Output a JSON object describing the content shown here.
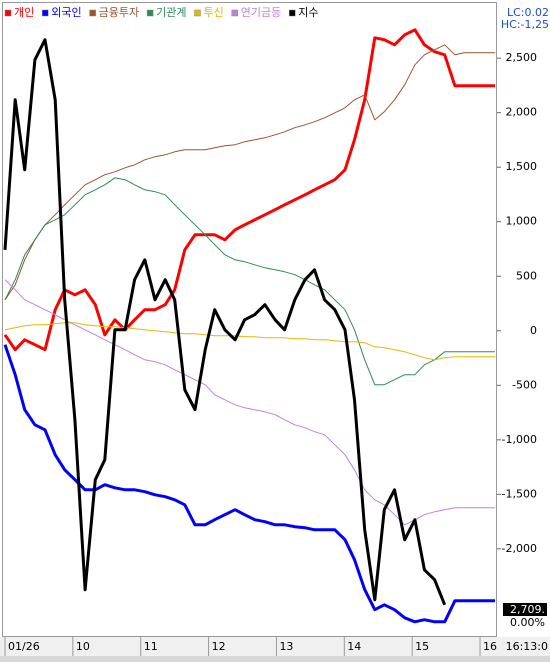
{
  "chart_data": {
    "type": "line",
    "x": [
      9.0,
      9.15,
      9.29,
      9.44,
      9.59,
      9.74,
      9.88,
      10.03,
      10.18,
      10.33,
      10.47,
      10.62,
      10.77,
      10.91,
      11.06,
      11.21,
      11.36,
      11.5,
      11.65,
      11.8,
      11.95,
      12.09,
      12.24,
      12.39,
      12.53,
      12.68,
      12.83,
      12.98,
      13.12,
      13.27,
      13.42,
      13.56,
      13.71,
      13.86,
      14.01,
      14.15,
      14.3,
      14.45,
      14.59,
      14.74,
      14.89,
      15.04,
      15.18,
      15.33,
      15.48,
      15.63,
      15.77,
      15.92,
      16.07,
      16.22
    ],
    "series": [
      {
        "name": "개인",
        "color": "#ff0000",
        "width": 3,
        "values": [
          -37,
          -174,
          -83,
          -128,
          -174,
          193,
          376,
          330,
          376,
          239,
          -37,
          101,
          9,
          101,
          193,
          193,
          239,
          376,
          743,
          880,
          880,
          880,
          834,
          926,
          972,
          1018,
          1064,
          1110,
          1155,
          1201,
          1247,
          1293,
          1339,
          1385,
          1476,
          1752,
          2118,
          2687,
          2669,
          2623,
          2714,
          2760,
          2623,
          2559,
          2531,
          2247,
          2247,
          2247,
          2247,
          2247
        ]
      },
      {
        "name": "외국인",
        "color": "#0000ff",
        "width": 3,
        "values": [
          -128,
          -403,
          -724,
          -862,
          -908,
          -1137,
          -1275,
          -1366,
          -1458,
          -1458,
          -1412,
          -1440,
          -1458,
          -1458,
          -1476,
          -1504,
          -1522,
          -1550,
          -1596,
          -1779,
          -1779,
          -1733,
          -1687,
          -1641,
          -1687,
          -1733,
          -1751,
          -1779,
          -1779,
          -1797,
          -1806,
          -1825,
          -1825,
          -1825,
          -1916,
          -2099,
          -2374,
          -2558,
          -2513,
          -2558,
          -2632,
          -2669,
          -2650,
          -2669,
          -2669,
          -2476,
          -2476,
          -2476,
          -2476,
          -2476
        ]
      },
      {
        "name": "금융투자",
        "color": "#a0522d",
        "width": 1,
        "values": [
          284,
          422,
          651,
          834,
          972,
          1064,
          1155,
          1247,
          1339,
          1385,
          1431,
          1458,
          1495,
          1522,
          1568,
          1596,
          1614,
          1641,
          1660,
          1660,
          1660,
          1678,
          1697,
          1706,
          1733,
          1752,
          1770,
          1797,
          1825,
          1862,
          1889,
          1917,
          1953,
          1999,
          2045,
          2118,
          2164,
          1935,
          2008,
          2118,
          2256,
          2439,
          2531,
          2577,
          2623,
          2531,
          2549,
          2549,
          2549,
          2549
        ]
      },
      {
        "name": "기관계",
        "color": "#2e8b57",
        "width": 1,
        "values": [
          284,
          468,
          697,
          834,
          972,
          1018,
          1064,
          1155,
          1247,
          1293,
          1339,
          1403,
          1385,
          1339,
          1293,
          1275,
          1247,
          1155,
          1064,
          972,
          880,
          789,
          697,
          651,
          633,
          605,
          578,
          559,
          541,
          514,
          468,
          422,
          376,
          284,
          193,
          9,
          -266,
          -495,
          -495,
          -449,
          -403,
          -403,
          -312,
          -266,
          -193,
          -193,
          -193,
          -193,
          -193,
          -193
        ]
      },
      {
        "name": "투신",
        "color": "#e6b800",
        "width": 1,
        "values": [
          9,
          28,
          46,
          55,
          55,
          64,
          73,
          73,
          55,
          46,
          37,
          37,
          28,
          18,
          9,
          0,
          -9,
          -18,
          -28,
          -28,
          -37,
          -46,
          -46,
          -46,
          -55,
          -55,
          -64,
          -64,
          -64,
          -73,
          -73,
          -83,
          -83,
          -92,
          -101,
          -101,
          -110,
          -147,
          -156,
          -174,
          -193,
          -220,
          -248,
          -266,
          -248,
          -238,
          -238,
          -238,
          -238,
          -238
        ]
      },
      {
        "name": "연기금등",
        "color": "#c080e0",
        "width": 1,
        "values": [
          468,
          376,
          284,
          239,
          193,
          147,
          101,
          55,
          9,
          -37,
          -83,
          -128,
          -174,
          -220,
          -266,
          -284,
          -312,
          -358,
          -403,
          -449,
          -495,
          -587,
          -633,
          -679,
          -706,
          -724,
          -743,
          -770,
          -816,
          -862,
          -889,
          -926,
          -954,
          -1045,
          -1137,
          -1275,
          -1458,
          -1550,
          -1596,
          -1687,
          -1779,
          -1733,
          -1687,
          -1660,
          -1641,
          -1623,
          -1623,
          -1623,
          -1623,
          -1623
        ]
      },
      {
        "name": "지수",
        "color": "#000000",
        "width": 3,
        "values": [
          743,
          2118,
          1476,
          2485,
          2669,
          2118,
          284,
          -816,
          -2375,
          -1366,
          -1183,
          9,
          9,
          468,
          651,
          284,
          468,
          284,
          -541,
          -724,
          -174,
          193,
          9,
          -83,
          101,
          147,
          239,
          101,
          9,
          284,
          468,
          559,
          284,
          193,
          9,
          -633,
          -1825,
          -2467,
          -1641,
          -1458,
          -1917,
          -1733,
          -2192,
          -2283,
          -2513,
          null,
          null,
          null,
          null,
          null
        ]
      }
    ],
    "xlim": [
      9,
      16.25
    ],
    "xticks": [
      {
        "value": 9,
        "label": "01/26"
      },
      10,
      11,
      12,
      13,
      14,
      15,
      16
    ],
    "ylim": [
      -2790,
      2850
    ],
    "yticks": [
      {
        "value": 2500,
        "label": "2,500"
      },
      {
        "value": 2000,
        "label": "2,000"
      },
      {
        "value": 1500,
        "label": "1,500"
      },
      {
        "value": 1000,
        "label": "1,000"
      },
      500,
      0,
      -500,
      {
        "value": -1000,
        "label": "-1,000"
      },
      {
        "value": -1500,
        "label": "-1,500"
      },
      {
        "value": -2000,
        "label": "-2,000"
      }
    ],
    "grid": false,
    "legend": "top-left",
    "lc_label": "LC:0.02",
    "hc_label": "HC:-1,25",
    "last_index_label": "2,709.",
    "change_label": "0.00%",
    "time_label": "16:13:0"
  }
}
